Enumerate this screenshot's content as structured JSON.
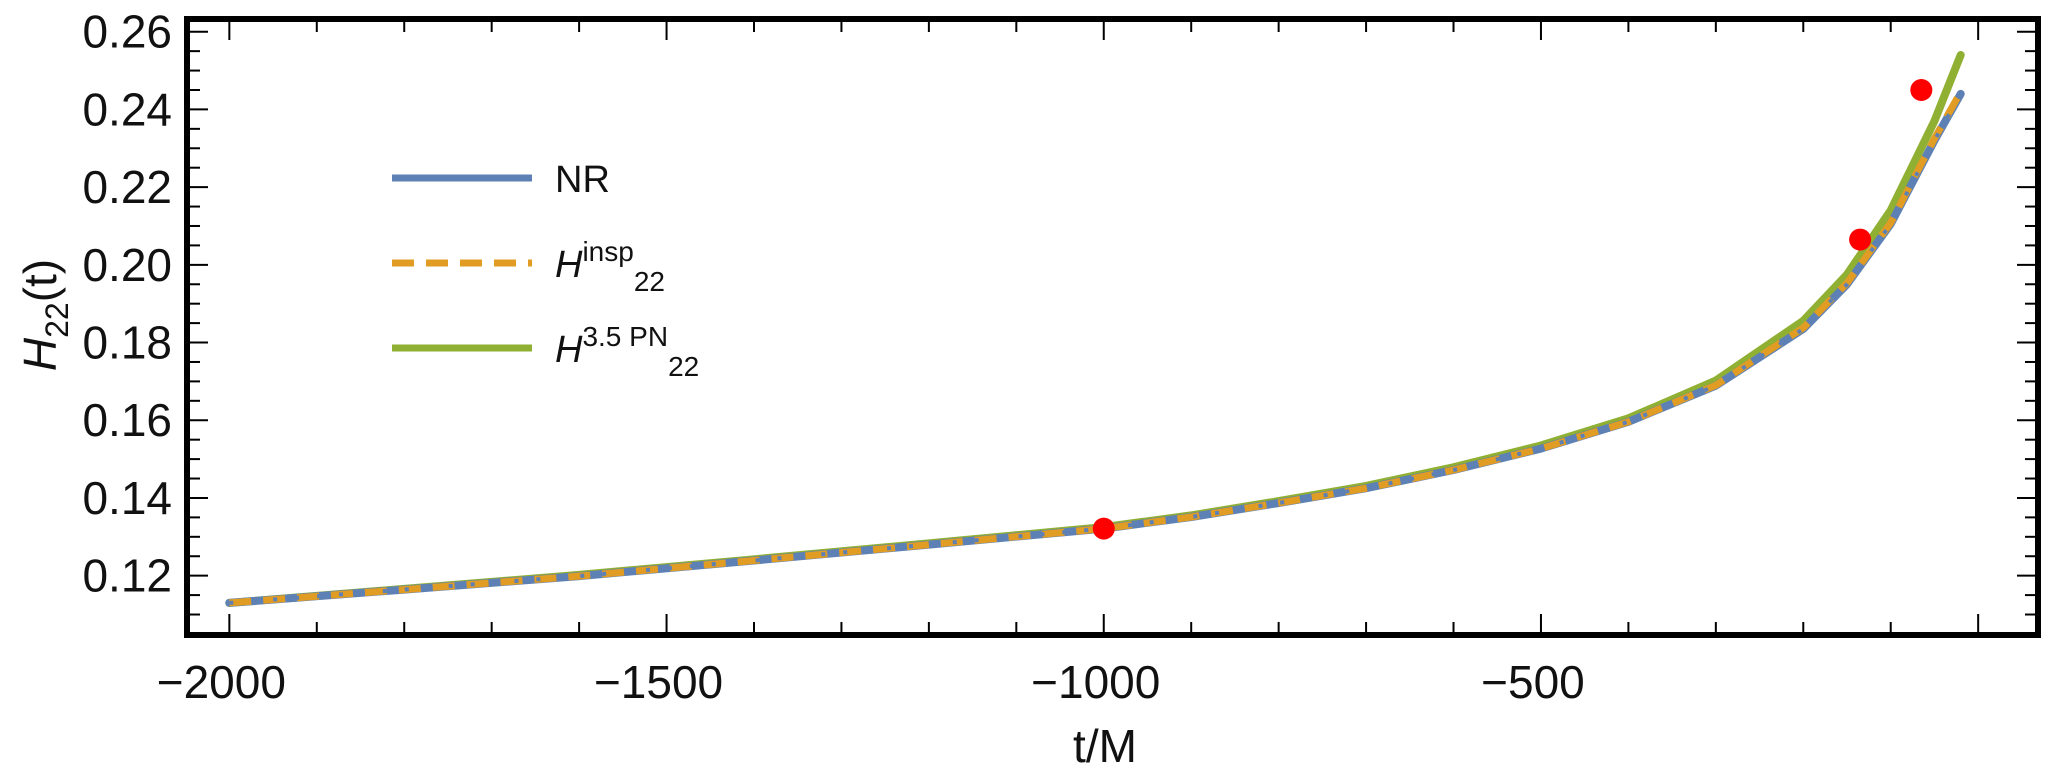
{
  "chart_data": {
    "type": "line",
    "xlabel": "t/M",
    "ylabel": {
      "main": "H",
      "sub": "22",
      "rest": "(t)"
    },
    "xlim": [
      -2045,
      65
    ],
    "ylim": [
      0.1055,
      0.2625
    ],
    "x_ticks": [
      -2000,
      -1500,
      -1000,
      -500
    ],
    "x_tick_labels": [
      "−2000",
      "−1500",
      "−1000",
      "−500"
    ],
    "y_ticks": [
      0.12,
      0.14,
      0.16,
      0.18,
      0.2,
      0.22,
      0.24,
      0.26
    ],
    "y_tick_labels": [
      "0.12",
      "0.14",
      "0.16",
      "0.18",
      "0.20",
      "0.22",
      "0.24",
      "0.26"
    ],
    "grid": false,
    "legend_position": "top-left",
    "series": [
      {
        "name": "NR",
        "color": "#5e81b5",
        "style": "solid",
        "x": [
          -2000,
          -1800,
          -1600,
          -1400,
          -1200,
          -1000,
          -900,
          -800,
          -700,
          -600,
          -500,
          -400,
          -300,
          -200,
          -150,
          -100,
          -50,
          -20
        ],
        "y": [
          0.113,
          0.1164,
          0.1199,
          0.1239,
          0.128,
          0.1321,
          0.1351,
          0.1387,
          0.1425,
          0.1472,
          0.1527,
          0.1596,
          0.1689,
          0.1835,
          0.195,
          0.2105,
          0.232,
          0.244
        ]
      },
      {
        "name": "insp",
        "legend_label": {
          "main": "H",
          "sup": "insp",
          "sub": "22"
        },
        "color": "#e19c24",
        "style": "dashed",
        "x": [
          -2000,
          -1800,
          -1600,
          -1400,
          -1200,
          -1000,
          -900,
          -800,
          -700,
          -600,
          -500,
          -400,
          -300,
          -200,
          -150,
          -100,
          -50,
          -20
        ],
        "y": [
          0.113,
          0.1164,
          0.1199,
          0.1239,
          0.128,
          0.1321,
          0.1351,
          0.1387,
          0.1425,
          0.1472,
          0.1527,
          0.1596,
          0.169,
          0.1838,
          0.1953,
          0.2108,
          0.2325,
          0.2445
        ]
      },
      {
        "name": "3.5PN",
        "legend_label": {
          "main": "H",
          "sup": "3.5 PN",
          "sub": "22"
        },
        "color": "#8fb032",
        "style": "solid",
        "x": [
          -2000,
          -1800,
          -1600,
          -1400,
          -1200,
          -1000,
          -900,
          -800,
          -700,
          -600,
          -500,
          -400,
          -300,
          -200,
          -150,
          -100,
          -50,
          -20
        ],
        "y": [
          0.113,
          0.1166,
          0.1202,
          0.1242,
          0.1283,
          0.1325,
          0.1355,
          0.1392,
          0.1431,
          0.1479,
          0.1535,
          0.1605,
          0.1702,
          0.1856,
          0.1975,
          0.214,
          0.237,
          0.254
        ]
      }
    ],
    "markers": {
      "color": "#ff0000",
      "points": [
        {
          "x": -1000,
          "y": 0.1321
        },
        {
          "x": -135,
          "y": 0.2065
        },
        {
          "x": -65,
          "y": 0.245
        }
      ]
    }
  }
}
